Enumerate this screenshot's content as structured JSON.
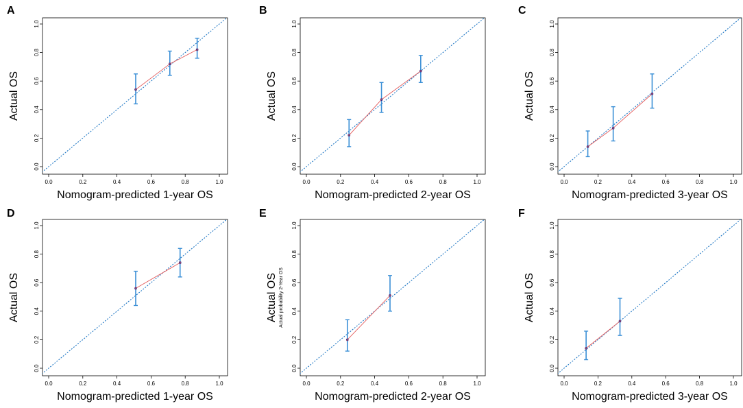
{
  "colors": {
    "diagonal": "#1f77c4",
    "error_bar": "#3a8fd6",
    "fitted_line": "#e35b5b",
    "point": "#2a2a8a",
    "frame": "#000000"
  },
  "chart_data": [
    {
      "panel": "A",
      "type": "line",
      "title": "",
      "xlabel": "Nomogram-predicted 1-year OS",
      "ylabel": "Actual OS",
      "ylabel_sub": "",
      "xlim": [
        0,
        1
      ],
      "ylim": [
        0,
        1
      ],
      "xticks": [
        "0.0",
        "0.2",
        "0.4",
        "0.6",
        "0.8",
        "1.0"
      ],
      "yticks": [
        "0.0",
        "0.2",
        "0.4",
        "0.6",
        "0.8",
        "1.0"
      ],
      "reference": "y = x",
      "points": [
        {
          "x": 0.51,
          "y": 0.54,
          "lower": 0.44,
          "upper": 0.65
        },
        {
          "x": 0.71,
          "y": 0.72,
          "lower": 0.64,
          "upper": 0.81
        },
        {
          "x": 0.87,
          "y": 0.82,
          "lower": 0.76,
          "upper": 0.9
        }
      ]
    },
    {
      "panel": "B",
      "type": "line",
      "title": "",
      "xlabel": "Nomogram-predicted 2-year OS",
      "ylabel": "Actual OS",
      "ylabel_sub": "",
      "xlim": [
        0,
        1
      ],
      "ylim": [
        0,
        1
      ],
      "xticks": [
        "0.0",
        "0.2",
        "0.4",
        "0.6",
        "0.8",
        "1.0"
      ],
      "yticks": [
        "0.0",
        "0.2",
        "0.4",
        "0.6",
        "0.8",
        "1.0"
      ],
      "reference": "y = x",
      "points": [
        {
          "x": 0.25,
          "y": 0.22,
          "lower": 0.14,
          "upper": 0.33
        },
        {
          "x": 0.44,
          "y": 0.47,
          "lower": 0.38,
          "upper": 0.59
        },
        {
          "x": 0.67,
          "y": 0.67,
          "lower": 0.59,
          "upper": 0.78
        }
      ]
    },
    {
      "panel": "C",
      "type": "line",
      "title": "",
      "xlabel": "Nomogram-predicted 3-year OS",
      "ylabel": "Actual OS",
      "ylabel_sub": "",
      "xlim": [
        0,
        1
      ],
      "ylim": [
        0,
        1
      ],
      "xticks": [
        "0.0",
        "0.2",
        "0.4",
        "0.6",
        "0.8",
        "1.0"
      ],
      "yticks": [
        "0.0",
        "0.2",
        "0.4",
        "0.6",
        "0.8",
        "1.0"
      ],
      "reference": "y = x",
      "points": [
        {
          "x": 0.14,
          "y": 0.14,
          "lower": 0.07,
          "upper": 0.25
        },
        {
          "x": 0.29,
          "y": 0.27,
          "lower": 0.18,
          "upper": 0.42
        },
        {
          "x": 0.52,
          "y": 0.51,
          "lower": 0.41,
          "upper": 0.65
        }
      ]
    },
    {
      "panel": "D",
      "type": "line",
      "title": "",
      "xlabel": "Nomogram-predicted 1-year OS",
      "ylabel": "Actual OS",
      "ylabel_sub": "",
      "xlim": [
        0,
        1
      ],
      "ylim": [
        0,
        1
      ],
      "xticks": [
        "0.0",
        "0.2",
        "0.4",
        "0.6",
        "0.8",
        "1.0"
      ],
      "yticks": [
        "0.0",
        "0.2",
        "0.4",
        "0.6",
        "0.8",
        "1.0"
      ],
      "reference": "y = x",
      "points": [
        {
          "x": 0.51,
          "y": 0.56,
          "lower": 0.44,
          "upper": 0.68
        },
        {
          "x": 0.77,
          "y": 0.74,
          "lower": 0.64,
          "upper": 0.84
        }
      ]
    },
    {
      "panel": "E",
      "type": "line",
      "title": "",
      "xlabel": "Nomogram-predicted 2-year OS",
      "ylabel": "Actual OS",
      "ylabel_sub": "Actual probability 2-Year OS",
      "xlim": [
        0,
        1
      ],
      "ylim": [
        0,
        1
      ],
      "xticks": [
        "0.0",
        "0.2",
        "0.4",
        "0.6",
        "0.8",
        "1.0"
      ],
      "yticks": [
        "0.0",
        "0.2",
        "0.4",
        "0.6",
        "0.8",
        "1.0"
      ],
      "reference": "y = x",
      "points": [
        {
          "x": 0.24,
          "y": 0.2,
          "lower": 0.12,
          "upper": 0.34
        },
        {
          "x": 0.49,
          "y": 0.51,
          "lower": 0.4,
          "upper": 0.65
        }
      ]
    },
    {
      "panel": "F",
      "type": "line",
      "title": "",
      "xlabel": "Nomogram-predicted 3-year OS",
      "ylabel": "Actual OS",
      "ylabel_sub": "",
      "xlim": [
        0,
        1
      ],
      "ylim": [
        0,
        1
      ],
      "xticks": [
        "0.0",
        "0.2",
        "0.4",
        "0.6",
        "0.8",
        "1.0"
      ],
      "yticks": [
        "0.0",
        "0.2",
        "0.4",
        "0.6",
        "0.8",
        "1.0"
      ],
      "reference": "y = x",
      "points": [
        {
          "x": 0.13,
          "y": 0.14,
          "lower": 0.06,
          "upper": 0.26
        },
        {
          "x": 0.33,
          "y": 0.33,
          "lower": 0.23,
          "upper": 0.49
        }
      ]
    }
  ]
}
